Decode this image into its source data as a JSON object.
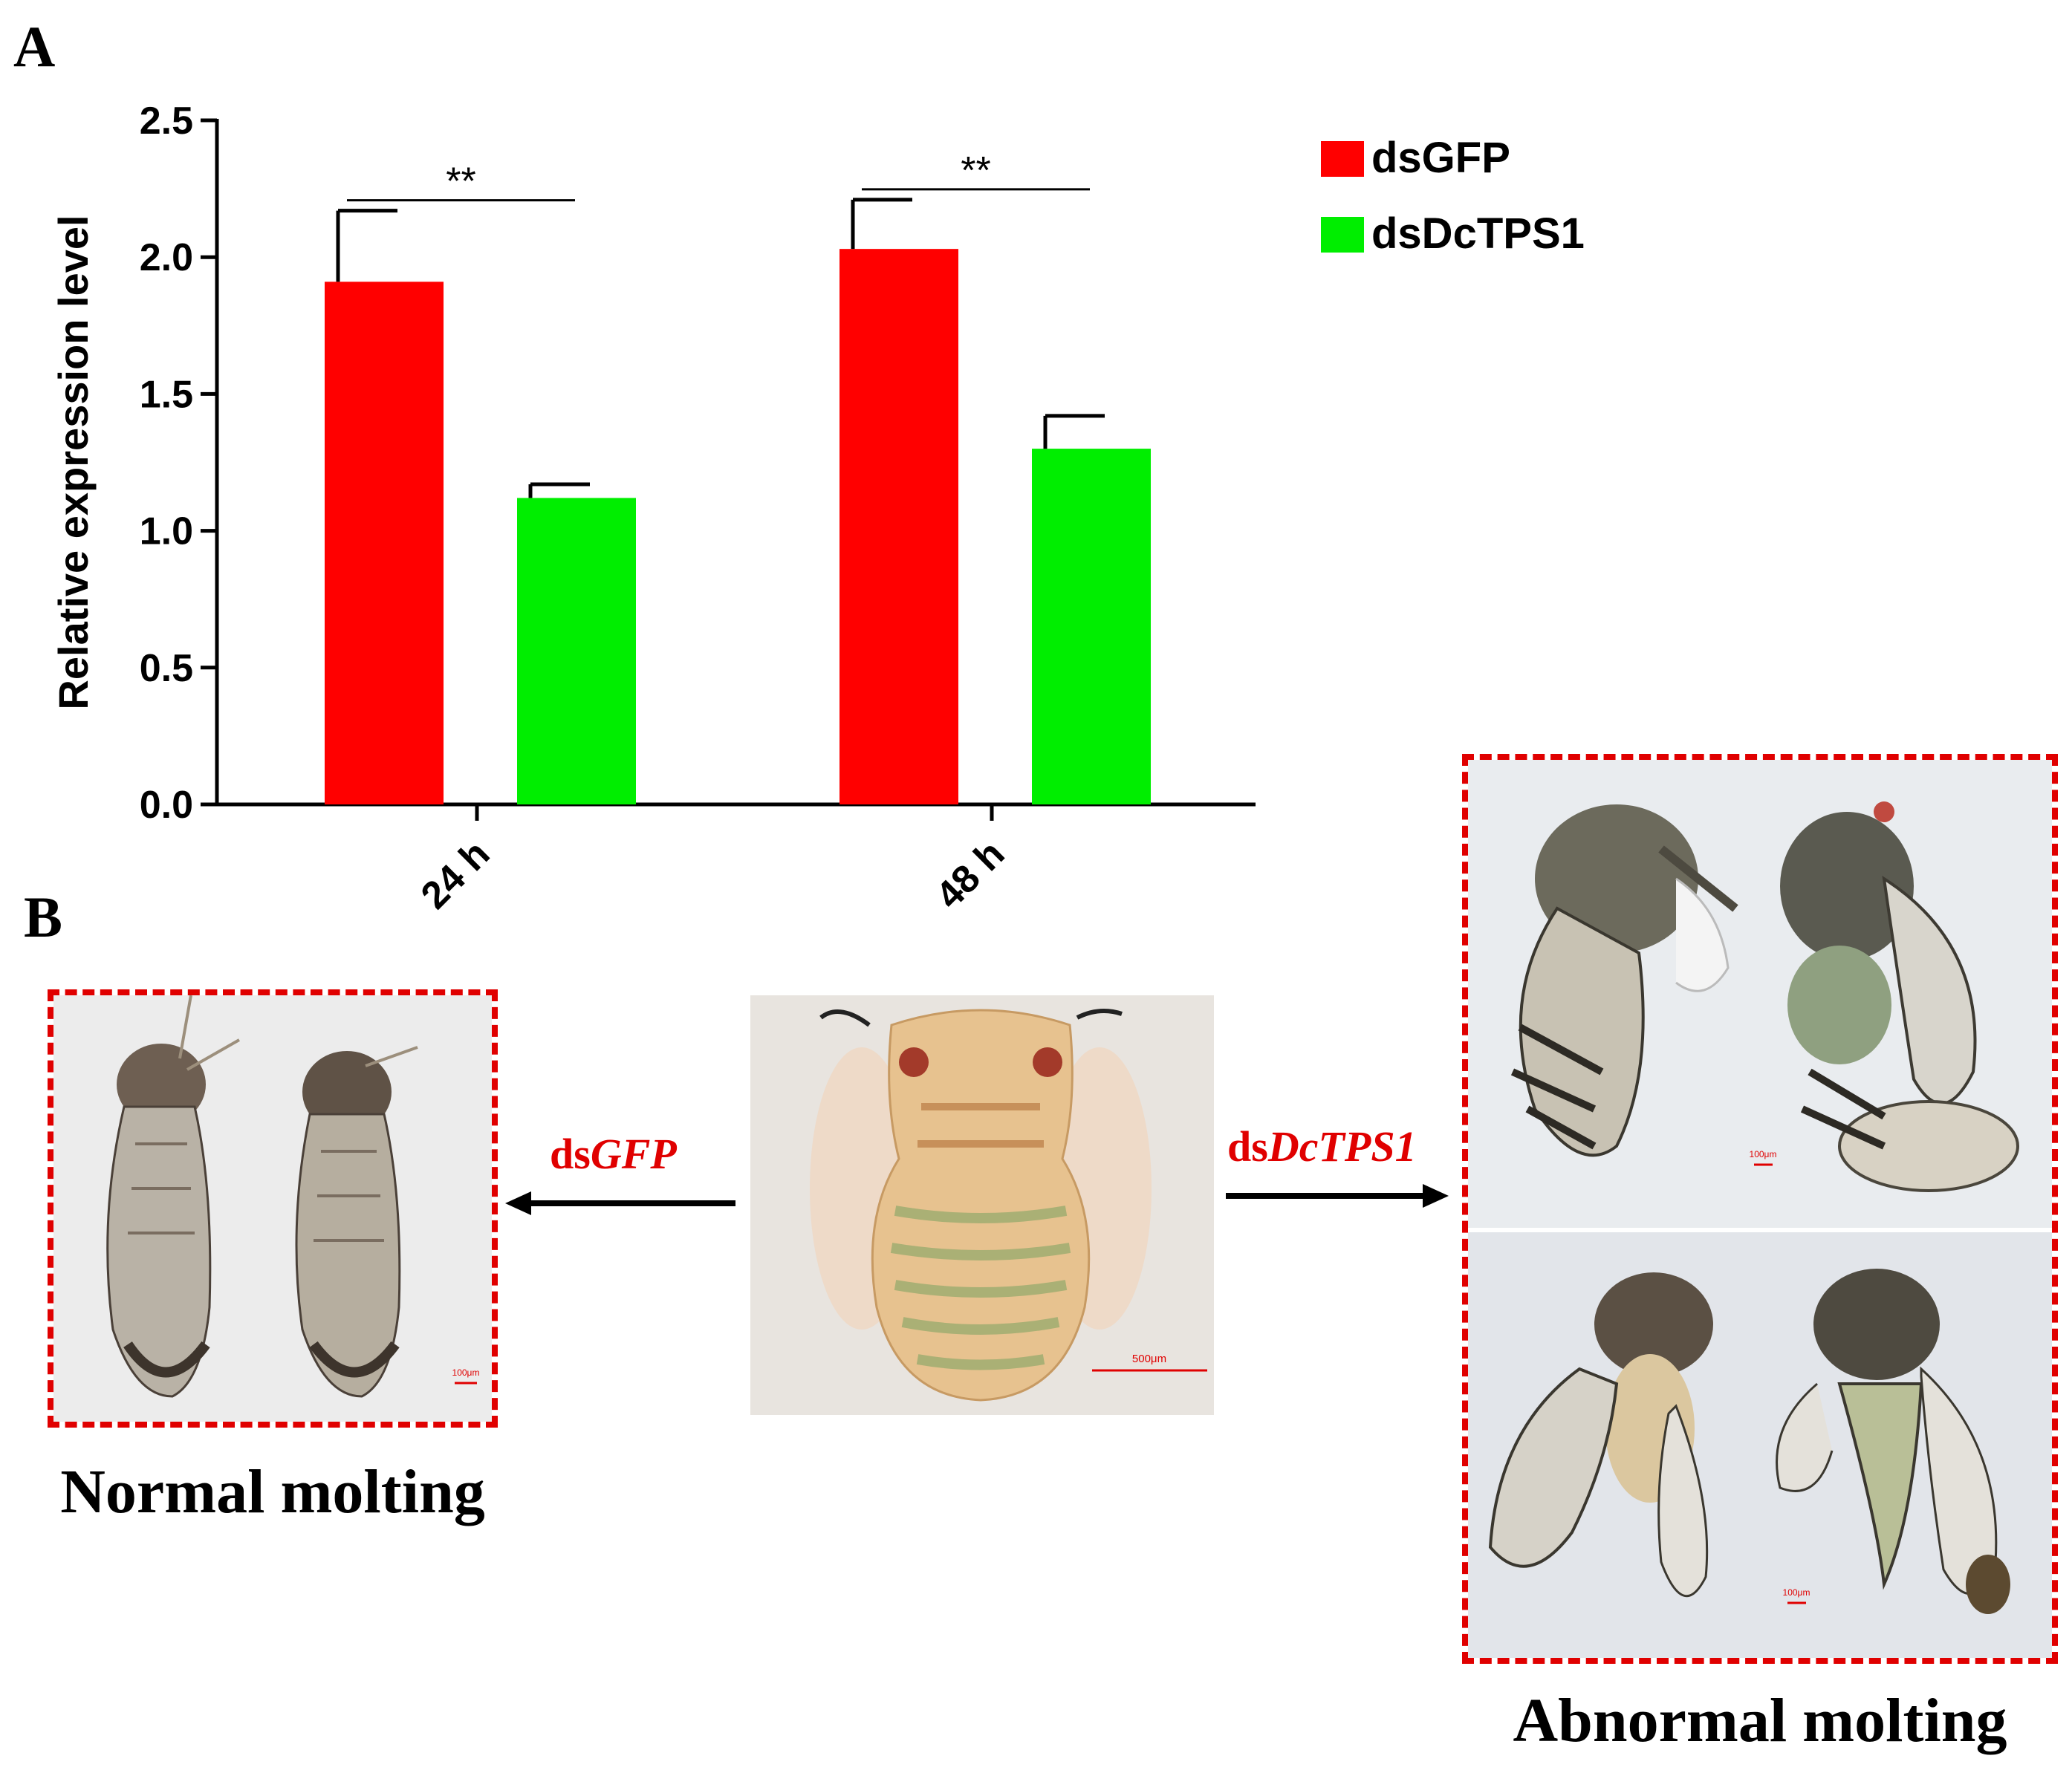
{
  "panel_a_label": "A",
  "panel_b_label": "B",
  "chart_data": {
    "type": "bar",
    "title": "",
    "xlabel": "",
    "ylabel": "Relative expression level",
    "ylim": [
      0,
      2.5
    ],
    "yticks": [
      "0.0",
      "0.5",
      "1.0",
      "1.5",
      "2.0",
      "2.5"
    ],
    "categories": [
      "24 h",
      "48 h"
    ],
    "series": [
      {
        "name": "dsGFP",
        "color": "#ff0000",
        "values": [
          1.91,
          2.03
        ],
        "errors": [
          0.26,
          0.18
        ]
      },
      {
        "name": "dsDcTPS1",
        "color": "#00ee00",
        "values": [
          1.12,
          1.3
        ],
        "errors": [
          0.05,
          0.12
        ]
      }
    ],
    "significance": [
      "**",
      "**"
    ],
    "legend_position": "top-right"
  },
  "treatments": {
    "left_prefix": "ds",
    "left_gene": "GFP",
    "right_prefix": "ds",
    "right_gene": "DcTPS1"
  },
  "captions": {
    "normal": "Normal molting",
    "abnormal": "Abnormal molting"
  },
  "scale_bars": {
    "center": "500μm",
    "normal": "100μm",
    "abnormal_top": "100μm",
    "abnormal_bottom": "100μm"
  },
  "colors": {
    "dashed_border": "#e00000",
    "arrow": "#000000",
    "treatment_label": "#e00000"
  }
}
